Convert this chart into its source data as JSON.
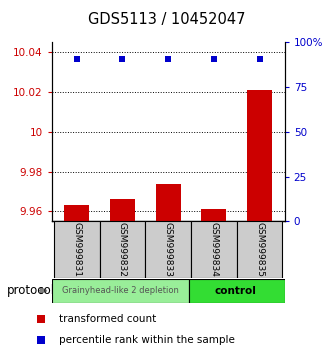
{
  "title": "GDS5113 / 10452047",
  "samples": [
    "GSM999831",
    "GSM999832",
    "GSM999833",
    "GSM999834",
    "GSM999835"
  ],
  "red_values": [
    9.963,
    9.966,
    9.974,
    9.961,
    10.021
  ],
  "blue_values": [
    91,
    91,
    91,
    91,
    91
  ],
  "ylim_left": [
    9.955,
    10.045
  ],
  "ylim_right": [
    0,
    100
  ],
  "yticks_left": [
    9.96,
    9.98,
    10.0,
    10.02,
    10.04
  ],
  "ytick_labels_left": [
    "9.96",
    "9.98",
    "10",
    "10.02",
    "10.04"
  ],
  "yticks_right": [
    0,
    25,
    50,
    75,
    100
  ],
  "ytick_labels_right": [
    "0",
    "25",
    "50",
    "75",
    "100%"
  ],
  "bar_color": "#cc0000",
  "dot_color": "#0000cc",
  "bar_bottom": 9.955,
  "protocol_groups": [
    {
      "label": "Grainyhead-like 2 depletion",
      "indices": [
        0,
        1,
        2
      ],
      "color": "#99ee99"
    },
    {
      "label": "control",
      "indices": [
        3,
        4
      ],
      "color": "#33dd33"
    }
  ],
  "protocol_label": "protocol",
  "legend_items": [
    {
      "color": "#cc0000",
      "label": "transformed count"
    },
    {
      "color": "#0000cc",
      "label": "percentile rank within the sample"
    }
  ],
  "sample_box_color": "#cccccc"
}
